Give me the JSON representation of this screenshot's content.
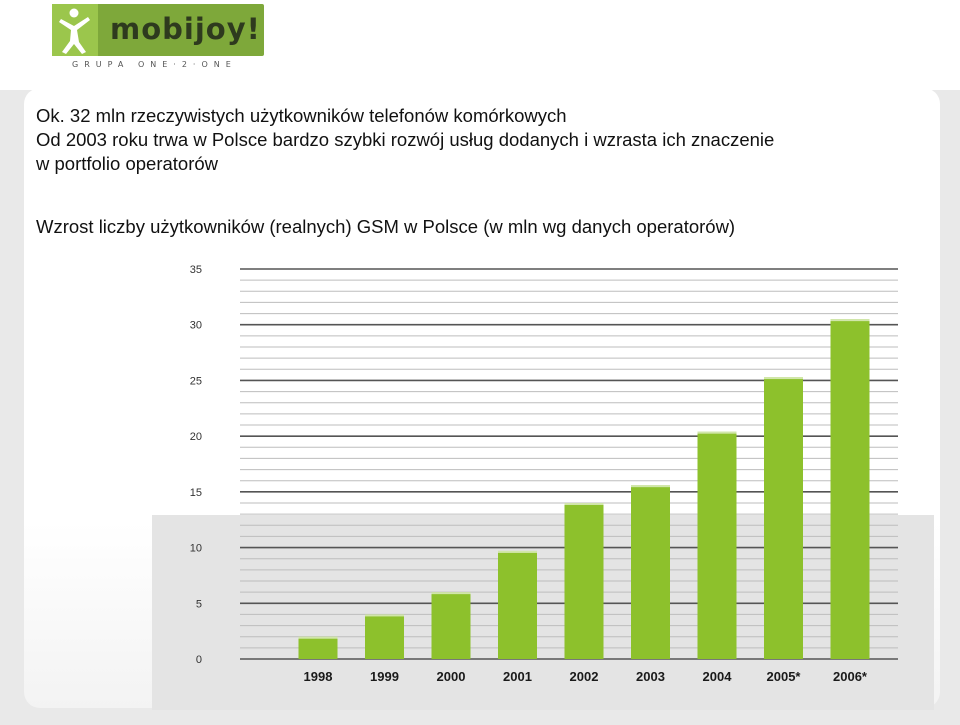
{
  "logo": {
    "text": "mobijoy!",
    "tagline": "GRUPA ONE·2·ONE",
    "accent": "#7ea83a"
  },
  "lines": [
    "Ok.  32 mln rzeczywistych użytkowników telefonów komórkowych",
    "Od 2003 roku trwa w Polsce bardzo szybki rozwój usług dodanych i wzrasta ich znaczenie",
    "w portfolio operatorów"
  ],
  "chart_title": "Wzrost liczby użytkowników (realnych) GSM w Polsce (w mln wg danych operatorów)",
  "chart_data": {
    "type": "bar",
    "categories": [
      "1998",
      "1999",
      "2000",
      "2001",
      "2002",
      "2003",
      "2004",
      "2005*",
      "2006*"
    ],
    "values": [
      2,
      4,
      6,
      9.7,
      14,
      15.6,
      20.4,
      25.3,
      30.5
    ],
    "ylim": [
      0,
      35
    ],
    "yticks": [
      0,
      5,
      10,
      15,
      20,
      25,
      30,
      35
    ],
    "grid": true,
    "bar_color": "#8dc12c"
  }
}
